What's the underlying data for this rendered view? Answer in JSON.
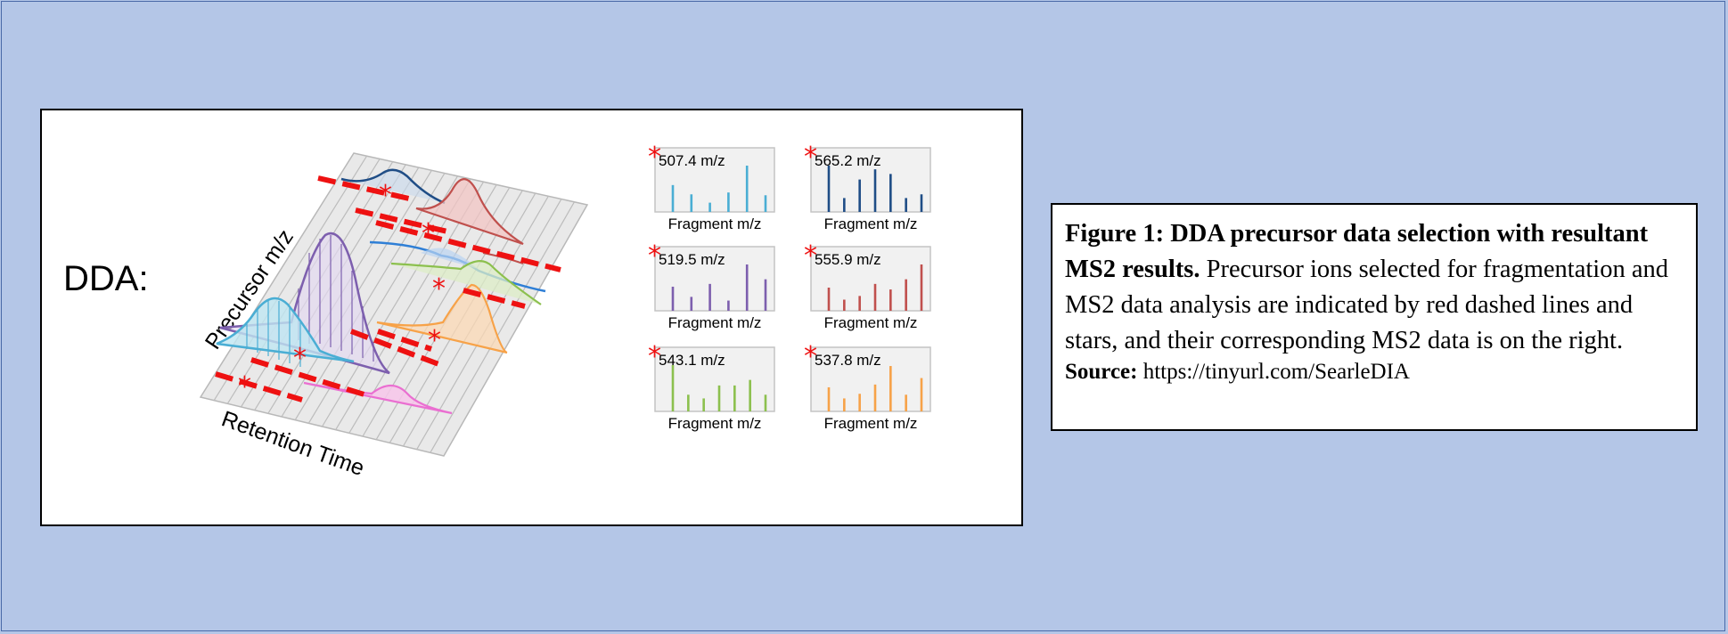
{
  "diagram": {
    "dda_label": "DDA:",
    "precursor_axis_label": "Precursor m/z",
    "retention_axis_label": "Retention Time",
    "star_glyph": "*",
    "colors": {
      "background": "#b4c6e7",
      "dashed_selection": "#ee1111",
      "star": "#ee1111"
    }
  },
  "ms2_panels": [
    {
      "mz": "507.4 m/z",
      "xlabel": "Fragment m/z",
      "color": "#4aaed4",
      "peaks": [
        0.58,
        0.38,
        0.2,
        0.42,
        1.0,
        0.36
      ]
    },
    {
      "mz": "565.2 m/z",
      "xlabel": "Fragment m/z",
      "color": "#1f4d86",
      "peaks": [
        1.0,
        0.3,
        0.7,
        0.92,
        0.82,
        0.3,
        0.38
      ]
    },
    {
      "mz": "519.5 m/z",
      "xlabel": "Fragment m/z",
      "color": "#7d5fae",
      "peaks": [
        0.52,
        0.3,
        0.58,
        0.22,
        1.0,
        0.68
      ]
    },
    {
      "mz": "555.9 m/z",
      "xlabel": "Fragment m/z",
      "color": "#c0504d",
      "peaks": [
        0.5,
        0.24,
        0.32,
        0.58,
        0.46,
        0.68,
        1.0
      ]
    },
    {
      "mz": "543.1 m/z",
      "xlabel": "Fragment m/z",
      "color": "#8cc04e",
      "peaks": [
        1.0,
        0.36,
        0.28,
        0.56,
        0.56,
        0.68,
        0.36
      ]
    },
    {
      "mz": "537.8 m/z",
      "xlabel": "Fragment m/z",
      "color": "#f7a248",
      "peaks": [
        0.52,
        0.28,
        0.38,
        0.58,
        0.98,
        0.36,
        0.72
      ]
    }
  ],
  "caption": {
    "title": "Figure 1: DDA precursor data selection with resultant MS2 results.",
    "body": " Precursor ions selected for fragmentation and MS2 data analysis are indicated by red dashed lines and stars, and their corresponding MS2 data is on the right.",
    "source_label": "Source:",
    "source_url": " https://tinyurl.com/SearleDIA"
  }
}
